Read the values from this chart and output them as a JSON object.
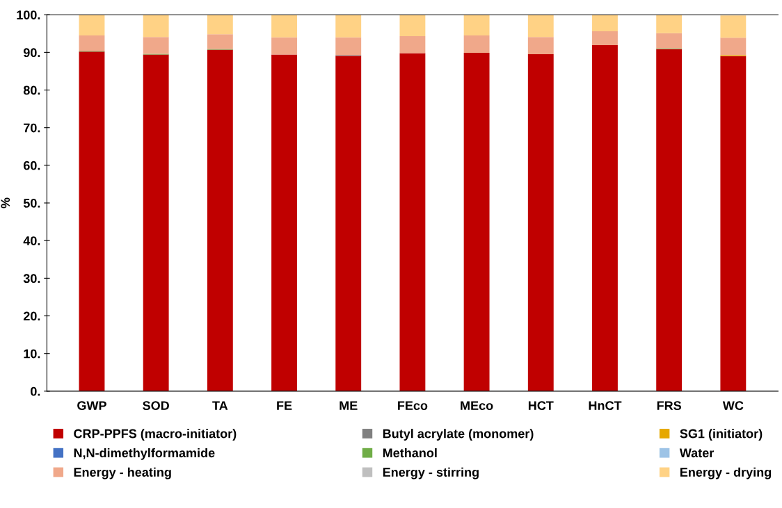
{
  "chart_data": {
    "type": "bar",
    "stacked": true,
    "ylabel": "%",
    "categories": [
      "GWP",
      "SOD",
      "TA",
      "FE",
      "ME",
      "FEco",
      "MEco",
      "HCT",
      "HnCT",
      "FRS",
      "WC"
    ],
    "ylim": [
      0,
      100
    ],
    "yticks": [
      {
        "value": 0,
        "label": "0."
      },
      {
        "value": 10,
        "label": "10."
      },
      {
        "value": 20,
        "label": "20."
      },
      {
        "value": 30,
        "label": "30."
      },
      {
        "value": 40,
        "label": "40."
      },
      {
        "value": 50,
        "label": "50."
      },
      {
        "value": 60,
        "label": "60."
      },
      {
        "value": 70,
        "label": "70."
      },
      {
        "value": 80,
        "label": "80."
      },
      {
        "value": 90,
        "label": "90."
      },
      {
        "value": 100,
        "label": "100."
      }
    ],
    "grid": false,
    "legend": "bottom",
    "series": [
      {
        "name": "CRP-PPFS (macro-initiator)",
        "color": "#c00000",
        "values": [
          90.2,
          89.4,
          90.7,
          89.4,
          89.1,
          89.8,
          89.9,
          89.5,
          91.9,
          90.9,
          89.0
        ]
      },
      {
        "name": "Butyl acrylate (monomer)",
        "color": "#808080",
        "values": [
          0,
          0,
          0,
          0,
          0.2,
          0,
          0,
          0,
          0,
          0,
          0
        ]
      },
      {
        "name": "SG1 (initiator)",
        "color": "#e6a800",
        "values": [
          0,
          0,
          0,
          0,
          0,
          0,
          0,
          0,
          0,
          0,
          0.3
        ]
      },
      {
        "name": "N,N-dimethylformamide",
        "color": "#4472c4",
        "values": [
          0,
          0,
          0,
          0,
          0,
          0,
          0,
          0,
          0,
          0,
          0
        ]
      },
      {
        "name": "Methanol",
        "color": "#70ad47",
        "values": [
          0.2,
          0.2,
          0.2,
          0,
          0,
          0,
          0,
          0,
          0,
          0.2,
          0
        ]
      },
      {
        "name": "Water",
        "color": "#9dc3e6",
        "values": [
          0,
          0,
          0,
          0,
          0,
          0,
          0,
          0,
          0,
          0,
          0
        ]
      },
      {
        "name": "Energy - heating",
        "color": "#f0a88a",
        "values": [
          4.1,
          4.5,
          3.9,
          4.6,
          4.7,
          4.5,
          4.6,
          4.6,
          3.7,
          4.0,
          4.6
        ]
      },
      {
        "name": "Energy - stirring",
        "color": "#bfbfbf",
        "values": [
          0,
          0,
          0,
          null,
          0,
          0,
          0,
          0,
          0,
          0,
          null
        ]
      },
      {
        "name": "Energy - drying",
        "color": "#ffd285",
        "values": [
          5.5,
          5.9,
          5.2,
          5.9,
          6.0,
          5.7,
          5.5,
          5.9,
          4.4,
          4.9,
          5.9
        ]
      }
    ]
  }
}
